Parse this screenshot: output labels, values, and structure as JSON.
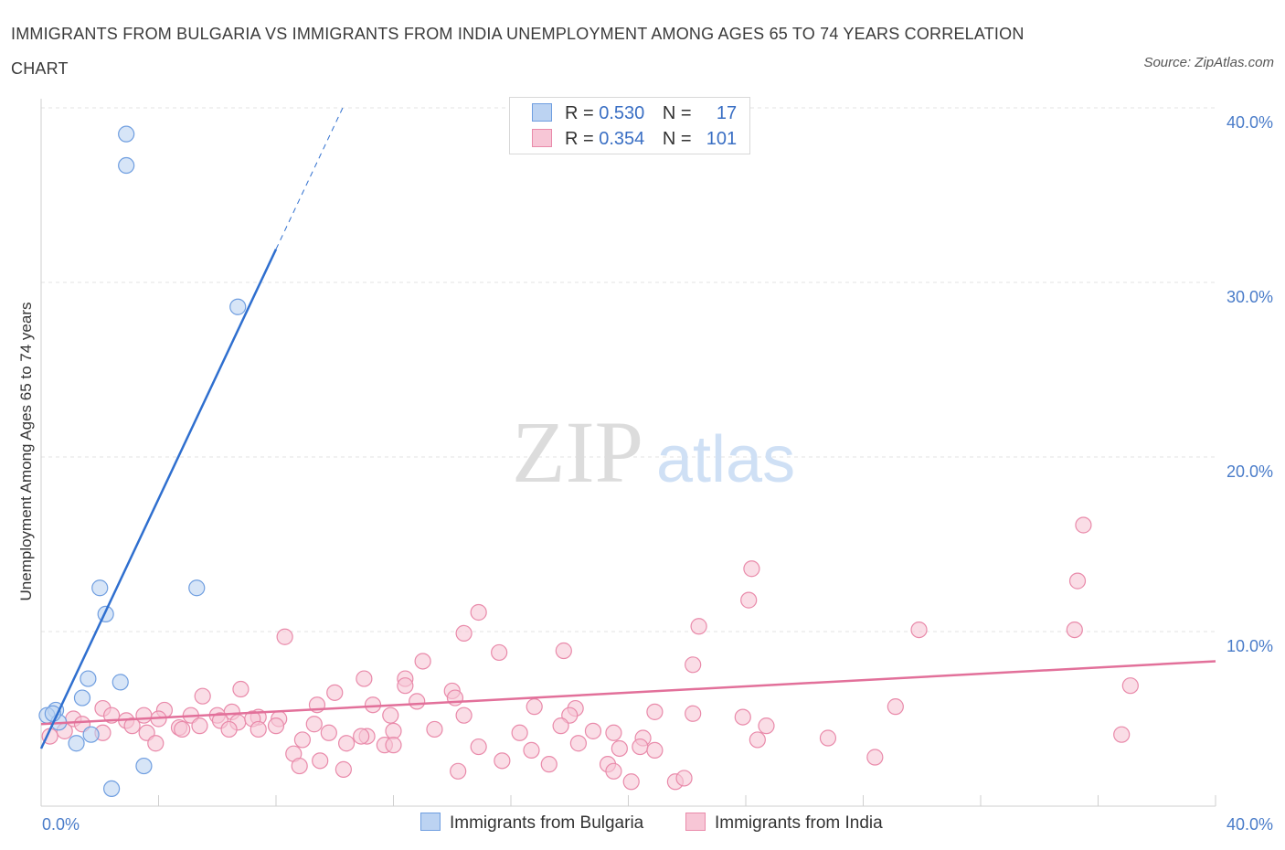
{
  "title": "IMMIGRANTS FROM BULGARIA VS IMMIGRANTS FROM INDIA UNEMPLOYMENT AMONG AGES 65 TO 74 YEARS CORRELATION CHART",
  "source": "Source: ZipAtlas.com",
  "watermark": {
    "zip": "ZIP",
    "atlas": "atlas"
  },
  "legend": {
    "bulgaria": {
      "r_label": "R =",
      "r_value": "0.530",
      "n_label": "N =",
      "n_value": "17"
    },
    "india": {
      "r_label": "R =",
      "r_value": "0.354",
      "n_label": "N =",
      "n_value": "101"
    }
  },
  "series_labels": {
    "bulgaria": "Immigrants from Bulgaria",
    "india": "Immigrants from India"
  },
  "colors": {
    "bulgaria_fill": "#bcd3f2",
    "bulgaria_stroke": "#6f9ee0",
    "bulgaria_line": "#2f6fcf",
    "india_fill": "#f7c6d6",
    "india_stroke": "#e98aaa",
    "india_line": "#e2709a"
  },
  "chart_data": {
    "type": "scatter",
    "title": "IMMIGRANTS FROM BULGARIA VS IMMIGRANTS FROM INDIA UNEMPLOYMENT AMONG AGES 65 TO 74 YEARS CORRELATION CHART",
    "xlabel": "",
    "ylabel": "Unemployment Among Ages 65 to 74 years",
    "xlim": [
      0,
      40
    ],
    "ylim": [
      0,
      40
    ],
    "x_tick_labels": [
      "0.0%",
      "40.0%"
    ],
    "y_ticks": [
      10,
      20,
      30,
      40
    ],
    "y_tick_labels": [
      "10.0%",
      "20.0%",
      "30.0%",
      "40.0%"
    ],
    "series": [
      {
        "name": "Immigrants from Bulgaria",
        "points": [
          [
            2.9,
            38.5
          ],
          [
            2.9,
            36.7
          ],
          [
            6.7,
            28.6
          ],
          [
            2.0,
            12.5
          ],
          [
            5.3,
            12.5
          ],
          [
            2.2,
            11.0
          ],
          [
            1.6,
            7.3
          ],
          [
            2.7,
            7.1
          ],
          [
            1.4,
            6.2
          ],
          [
            0.5,
            5.5
          ],
          [
            0.2,
            5.2
          ],
          [
            0.6,
            4.8
          ],
          [
            0.4,
            5.3
          ],
          [
            1.7,
            4.1
          ],
          [
            1.2,
            3.6
          ],
          [
            3.5,
            2.3
          ],
          [
            2.4,
            1.0
          ]
        ],
        "trend": {
          "x": [
            0,
            8
          ],
          "y": [
            3.3,
            31.9
          ]
        },
        "trend_extension": {
          "x": [
            8,
            10.3
          ],
          "y": [
            31.9,
            40.1
          ]
        }
      },
      {
        "name": "Immigrants from India",
        "points": [
          [
            35.5,
            16.1
          ],
          [
            24.2,
            13.6
          ],
          [
            35.3,
            12.9
          ],
          [
            24.1,
            11.8
          ],
          [
            14.9,
            11.1
          ],
          [
            22.4,
            10.3
          ],
          [
            29.9,
            10.1
          ],
          [
            35.2,
            10.1
          ],
          [
            14.4,
            9.9
          ],
          [
            8.3,
            9.7
          ],
          [
            15.6,
            8.8
          ],
          [
            17.8,
            8.9
          ],
          [
            13.0,
            8.3
          ],
          [
            22.2,
            8.1
          ],
          [
            11.0,
            7.3
          ],
          [
            12.4,
            7.3
          ],
          [
            12.4,
            6.9
          ],
          [
            37.1,
            6.9
          ],
          [
            6.8,
            6.7
          ],
          [
            10.0,
            6.5
          ],
          [
            14.0,
            6.6
          ],
          [
            5.5,
            6.3
          ],
          [
            14.1,
            6.2
          ],
          [
            12.8,
            6.0
          ],
          [
            9.4,
            5.8
          ],
          [
            11.3,
            5.8
          ],
          [
            16.8,
            5.7
          ],
          [
            29.1,
            5.7
          ],
          [
            18.2,
            5.6
          ],
          [
            2.1,
            5.6
          ],
          [
            4.2,
            5.5
          ],
          [
            6.5,
            5.4
          ],
          [
            2.4,
            5.2
          ],
          [
            3.5,
            5.2
          ],
          [
            5.1,
            5.2
          ],
          [
            6.0,
            5.2
          ],
          [
            7.4,
            5.1
          ],
          [
            11.9,
            5.2
          ],
          [
            14.4,
            5.2
          ],
          [
            18.0,
            5.2
          ],
          [
            20.9,
            5.4
          ],
          [
            22.2,
            5.3
          ],
          [
            23.9,
            5.1
          ],
          [
            1.1,
            5.0
          ],
          [
            2.9,
            4.9
          ],
          [
            4.0,
            5.0
          ],
          [
            6.1,
            4.9
          ],
          [
            6.7,
            4.8
          ],
          [
            7.2,
            5.0
          ],
          [
            8.1,
            5.0
          ],
          [
            1.4,
            4.7
          ],
          [
            3.1,
            4.6
          ],
          [
            4.7,
            4.5
          ],
          [
            5.4,
            4.6
          ],
          [
            8.0,
            4.6
          ],
          [
            9.3,
            4.7
          ],
          [
            13.4,
            4.4
          ],
          [
            17.7,
            4.6
          ],
          [
            24.7,
            4.6
          ],
          [
            0.8,
            4.3
          ],
          [
            2.1,
            4.2
          ],
          [
            3.6,
            4.2
          ],
          [
            4.8,
            4.4
          ],
          [
            6.4,
            4.4
          ],
          [
            7.4,
            4.4
          ],
          [
            9.8,
            4.2
          ],
          [
            11.1,
            4.0
          ],
          [
            12.0,
            4.3
          ],
          [
            16.3,
            4.2
          ],
          [
            18.8,
            4.3
          ],
          [
            19.5,
            4.2
          ],
          [
            20.5,
            3.9
          ],
          [
            24.4,
            3.8
          ],
          [
            26.8,
            3.9
          ],
          [
            36.8,
            4.1
          ],
          [
            0.3,
            4.0
          ],
          [
            3.9,
            3.6
          ],
          [
            8.9,
            3.8
          ],
          [
            10.4,
            3.6
          ],
          [
            10.9,
            4.0
          ],
          [
            11.7,
            3.5
          ],
          [
            12.0,
            3.5
          ],
          [
            14.9,
            3.4
          ],
          [
            16.7,
            3.2
          ],
          [
            18.3,
            3.6
          ],
          [
            19.7,
            3.3
          ],
          [
            20.4,
            3.4
          ],
          [
            8.6,
            3.0
          ],
          [
            9.5,
            2.6
          ],
          [
            15.7,
            2.6
          ],
          [
            17.3,
            2.4
          ],
          [
            19.3,
            2.4
          ],
          [
            28.4,
            2.8
          ],
          [
            20.9,
            3.2
          ],
          [
            8.8,
            2.3
          ],
          [
            19.5,
            2.0
          ],
          [
            20.1,
            1.4
          ],
          [
            21.6,
            1.4
          ],
          [
            21.9,
            1.6
          ],
          [
            14.2,
            2.0
          ],
          [
            10.3,
            2.1
          ]
        ],
        "trend": {
          "x": [
            0,
            40
          ],
          "y": [
            4.7,
            8.3
          ]
        }
      }
    ]
  }
}
